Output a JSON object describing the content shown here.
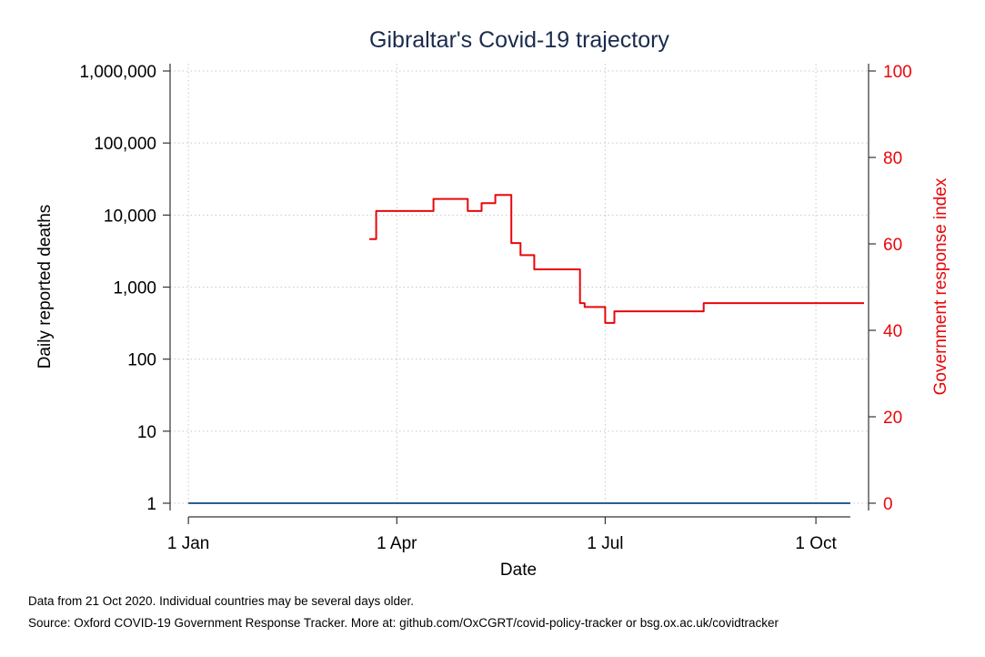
{
  "chart_data": {
    "type": "line",
    "title": "Gibraltar's Covid-19 trajectory",
    "xlabel": "Date",
    "ylabel_left": "Daily reported deaths",
    "ylabel_right": "Government response index",
    "x_ticks": [
      {
        "label": "1 Jan",
        "day": 1
      },
      {
        "label": "1 Apr",
        "day": 92
      },
      {
        "label": "1 Jul",
        "day": 183
      },
      {
        "label": "1 Oct",
        "day": 275
      }
    ],
    "x_range_days": [
      -7,
      298
    ],
    "y_left_scale": "log",
    "y_left_ticks": [
      {
        "label": "1",
        "value": 1
      },
      {
        "label": "10",
        "value": 10
      },
      {
        "label": "100",
        "value": 100
      },
      {
        "label": "1,000",
        "value": 1000
      },
      {
        "label": "10,000",
        "value": 10000
      },
      {
        "label": "100,000",
        "value": 100000
      },
      {
        "label": "1,000,000",
        "value": 1000000
      }
    ],
    "y_right_ticks": [
      {
        "label": "0",
        "value": 0
      },
      {
        "label": "20",
        "value": 20
      },
      {
        "label": "40",
        "value": 40
      },
      {
        "label": "60",
        "value": 60
      },
      {
        "label": "80",
        "value": 80
      },
      {
        "label": "100",
        "value": 100
      }
    ],
    "grid": true,
    "series": [
      {
        "name": "Daily reported deaths",
        "axis": "left",
        "color": "#2f5d8c",
        "points": [
          [
            1,
            1
          ],
          [
            290,
            1
          ]
        ]
      },
      {
        "name": "Government response index",
        "axis": "right",
        "color": "#e8070b",
        "step": true,
        "points": [
          [
            80,
            61.1
          ],
          [
            83,
            67.6
          ],
          [
            108,
            70.4
          ],
          [
            123,
            67.6
          ],
          [
            129,
            69.4
          ],
          [
            135,
            71.3
          ],
          [
            142,
            60.2
          ],
          [
            146,
            57.4
          ],
          [
            152,
            54.1
          ],
          [
            172,
            46.3
          ],
          [
            174,
            45.4
          ],
          [
            183,
            41.7
          ],
          [
            187,
            44.4
          ],
          [
            226,
            46.3
          ],
          [
            296,
            46.3
          ]
        ]
      }
    ]
  },
  "notes": {
    "line1": "Data from 21 Oct 2020. Individual countries may be several days older.",
    "line2": "Source: Oxford COVID-19 Government Response Tracker. More at: github.com/OxCGRT/covid-policy-tracker or bsg.ox.ac.uk/covidtracker"
  },
  "colors": {
    "title": "#1a2b4c",
    "deaths_line": "#2f5d8c",
    "index_line": "#e8070b",
    "grid": "#c8c8c8",
    "axis": "#333333"
  }
}
